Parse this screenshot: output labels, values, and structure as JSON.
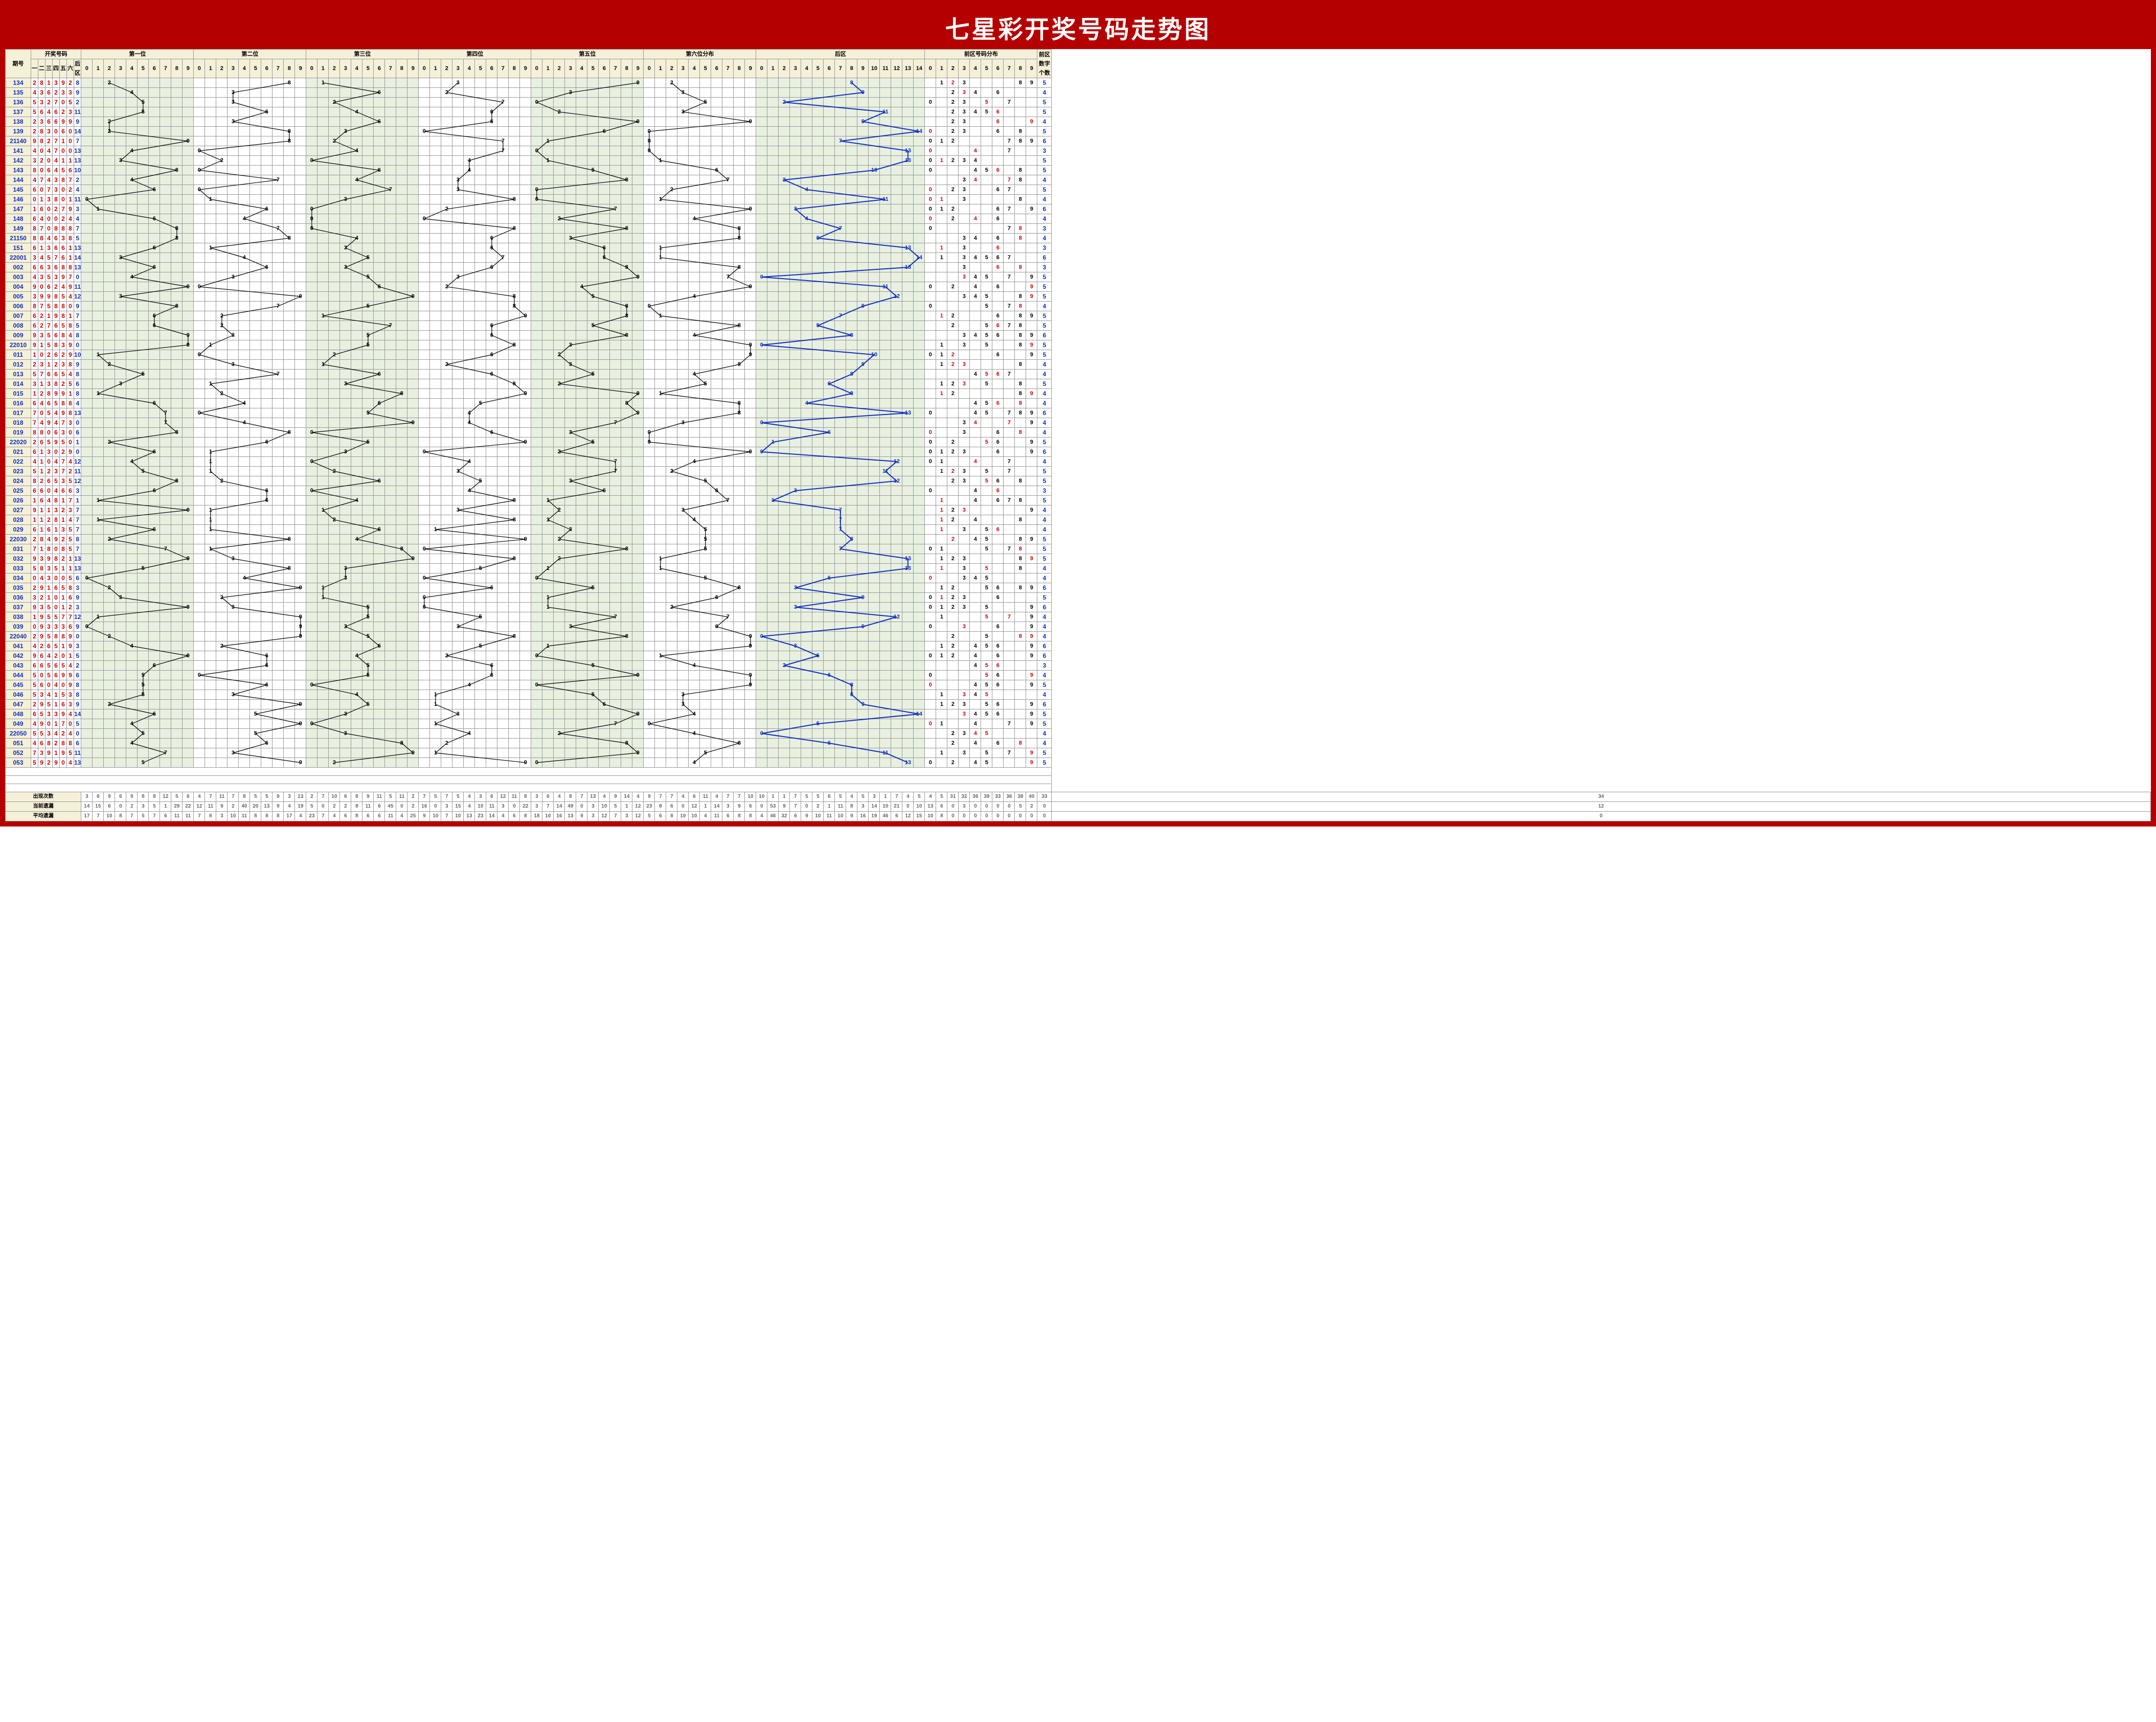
{
  "title": "七星彩开奖号码走势图",
  "headers": {
    "period": "期号",
    "draw_numbers": "开奖号码",
    "draw_cols": [
      "一",
      "二",
      "三",
      "四",
      "五",
      "六",
      "后区"
    ],
    "positions": [
      "第一位",
      "第二位",
      "第三位",
      "第四位",
      "第五位",
      "第六位分布",
      "后区"
    ],
    "pos_digits": [
      "0",
      "1",
      "2",
      "3",
      "4",
      "5",
      "6",
      "7",
      "8",
      "9"
    ],
    "hz_digits": [
      "0",
      "1",
      "2",
      "3",
      "4",
      "5",
      "6",
      "7",
      "8",
      "9",
      "10",
      "11",
      "12",
      "13",
      "14"
    ],
    "dist": "前区号码分布",
    "dist_digits": [
      "0",
      "1",
      "2",
      "3",
      "4",
      "5",
      "6",
      "7",
      "8",
      "9"
    ],
    "count": "前区数字个数"
  },
  "position_bg": [
    "green",
    "white",
    "green",
    "white",
    "green",
    "white",
    "green"
  ],
  "colors": {
    "frame": "#b50000",
    "header_bg": "#f5f0d8",
    "green_bg": "#e8f0e0",
    "grid": "#999999",
    "blue": "#1030c0",
    "red": "#cc0000",
    "black": "#000000",
    "trend_line_black": "#000000",
    "trend_line_blue": "#1030c0"
  },
  "footer": {
    "rows": [
      "出现次数",
      "当前遗漏",
      "平均遗漏"
    ],
    "values": [
      [
        3,
        6,
        9,
        6,
        9,
        8,
        8,
        12,
        5,
        6,
        4,
        7,
        11,
        7,
        8,
        5,
        5,
        9,
        3,
        13,
        2,
        7,
        10,
        6,
        8,
        9,
        11,
        5,
        11,
        2,
        7,
        5,
        7,
        5,
        4,
        3,
        6,
        12,
        11,
        8,
        3,
        6,
        4,
        8,
        7,
        13,
        4,
        9,
        14,
        4,
        9,
        7,
        7,
        4,
        6,
        11,
        4,
        7,
        7,
        10,
        10,
        1,
        1,
        7,
        5,
        5,
        6,
        5,
        4,
        5,
        3,
        1,
        7,
        4,
        5,
        4,
        5,
        31,
        32,
        36,
        39,
        33,
        36,
        38,
        40,
        33,
        34
      ],
      [
        14,
        15,
        6,
        0,
        2,
        3,
        5,
        1,
        29,
        22,
        12,
        11,
        9,
        2,
        40,
        20,
        13,
        9,
        4,
        19,
        5,
        0,
        2,
        2,
        8,
        11,
        6,
        45,
        0,
        2,
        16,
        0,
        3,
        15,
        4,
        10,
        11,
        3,
        0,
        22,
        3,
        7,
        14,
        49,
        0,
        3,
        10,
        5,
        1,
        12,
        23,
        8,
        6,
        0,
        12,
        1,
        14,
        3,
        9,
        6,
        0,
        53,
        9,
        7,
        0,
        2,
        1,
        11,
        8,
        3,
        14,
        10,
        21,
        0,
        10,
        13,
        6,
        0,
        3,
        0,
        0,
        0,
        0,
        5,
        2,
        0,
        12
      ],
      [
        17,
        7,
        10,
        8,
        7,
        5,
        7,
        6,
        11,
        11,
        7,
        8,
        3,
        10,
        11,
        8,
        8,
        8,
        17,
        4,
        23,
        7,
        4,
        6,
        8,
        6,
        6,
        11,
        4,
        25,
        9,
        10,
        7,
        10,
        13,
        23,
        14,
        4,
        6,
        8,
        18,
        10,
        16,
        13,
        9,
        3,
        12,
        7,
        3,
        12,
        5,
        6,
        8,
        10,
        10,
        4,
        11,
        6,
        8,
        8,
        4,
        46,
        32,
        6,
        9,
        10,
        11,
        10,
        9,
        16,
        19,
        46,
        6,
        12,
        15,
        10,
        8,
        0,
        0,
        0,
        0,
        0,
        0,
        0,
        0,
        0,
        0
      ]
    ]
  },
  "rows": [
    {
      "p": "134",
      "n": [
        2,
        8,
        1,
        3,
        9,
        2
      ],
      "hz": 8
    },
    {
      "p": "135",
      "n": [
        4,
        3,
        6,
        2,
        3,
        3
      ],
      "hz": 9
    },
    {
      "p": "136",
      "n": [
        5,
        3,
        2,
        7,
        0,
        5
      ],
      "hz": 2
    },
    {
      "p": "137",
      "n": [
        5,
        6,
        4,
        6,
        2,
        3
      ],
      "hz": 11
    },
    {
      "p": "138",
      "n": [
        2,
        3,
        6,
        6,
        9,
        9
      ],
      "hz": 9
    },
    {
      "p": "139",
      "n": [
        2,
        8,
        3,
        0,
        6,
        0
      ],
      "hz": 14
    },
    {
      "p": "21140",
      "n": [
        9,
        8,
        2,
        7,
        1,
        0
      ],
      "hz": 7
    },
    {
      "p": "141",
      "n": [
        4,
        0,
        4,
        7,
        0,
        0
      ],
      "hz": 13
    },
    {
      "p": "142",
      "n": [
        3,
        2,
        0,
        4,
        1,
        1
      ],
      "hz": 13
    },
    {
      "p": "143",
      "n": [
        8,
        0,
        6,
        4,
        5,
        6
      ],
      "hz": 10
    },
    {
      "p": "144",
      "n": [
        4,
        7,
        4,
        3,
        8,
        7
      ],
      "hz": 2
    },
    {
      "p": "145",
      "n": [
        6,
        0,
        7,
        3,
        0,
        2
      ],
      "hz": 4
    },
    {
      "p": "146",
      "n": [
        0,
        1,
        3,
        8,
        0,
        1
      ],
      "hz": 11
    },
    {
      "p": "147",
      "n": [
        1,
        6,
        0,
        2,
        7,
        9
      ],
      "hz": 3
    },
    {
      "p": "148",
      "n": [
        6,
        4,
        0,
        0,
        2,
        4
      ],
      "hz": 4
    },
    {
      "p": "149",
      "n": [
        8,
        7,
        0,
        8,
        8,
        8
      ],
      "hz": 7
    },
    {
      "p": "21150",
      "n": [
        8,
        8,
        4,
        6,
        3,
        8
      ],
      "hz": 5
    },
    {
      "p": "151",
      "n": [
        6,
        1,
        3,
        6,
        6,
        1
      ],
      "hz": 13
    },
    {
      "p": "22001",
      "n": [
        3,
        4,
        5,
        7,
        6,
        1
      ],
      "hz": 14
    },
    {
      "p": "002",
      "n": [
        6,
        6,
        3,
        6,
        8,
        8
      ],
      "hz": 13
    },
    {
      "p": "003",
      "n": [
        4,
        3,
        5,
        3,
        9,
        7
      ],
      "hz": 0
    },
    {
      "p": "004",
      "n": [
        9,
        0,
        6,
        2,
        4,
        9
      ],
      "hz": 11
    },
    {
      "p": "005",
      "n": [
        3,
        9,
        9,
        8,
        5,
        4
      ],
      "hz": 12
    },
    {
      "p": "006",
      "n": [
        8,
        7,
        5,
        8,
        8,
        0
      ],
      "hz": 9
    },
    {
      "p": "007",
      "n": [
        6,
        2,
        1,
        9,
        8,
        1
      ],
      "hz": 7
    },
    {
      "p": "008",
      "n": [
        6,
        2,
        7,
        6,
        5,
        8
      ],
      "hz": 5
    },
    {
      "p": "009",
      "n": [
        9,
        3,
        5,
        6,
        8,
        4
      ],
      "hz": 8
    },
    {
      "p": "22010",
      "n": [
        9,
        1,
        5,
        8,
        3,
        9
      ],
      "hz": 0
    },
    {
      "p": "011",
      "n": [
        1,
        0,
        2,
        6,
        2,
        9
      ],
      "hz": 10
    },
    {
      "p": "012",
      "n": [
        2,
        3,
        1,
        2,
        3,
        8
      ],
      "hz": 9
    },
    {
      "p": "013",
      "n": [
        5,
        7,
        6,
        6,
        5,
        4
      ],
      "hz": 8
    },
    {
      "p": "014",
      "n": [
        3,
        1,
        3,
        8,
        2,
        5
      ],
      "hz": 6
    },
    {
      "p": "015",
      "n": [
        1,
        2,
        8,
        9,
        9,
        1
      ],
      "hz": 8
    },
    {
      "p": "016",
      "n": [
        6,
        4,
        6,
        5,
        8,
        8
      ],
      "hz": 4
    },
    {
      "p": "017",
      "n": [
        7,
        0,
        5,
        4,
        9,
        8
      ],
      "hz": 13
    },
    {
      "p": "018",
      "n": [
        7,
        4,
        9,
        4,
        7,
        3
      ],
      "hz": 0
    },
    {
      "p": "019",
      "n": [
        8,
        8,
        0,
        6,
        3,
        0
      ],
      "hz": 6
    },
    {
      "p": "22020",
      "n": [
        2,
        6,
        5,
        9,
        5,
        0
      ],
      "hz": 1
    },
    {
      "p": "021",
      "n": [
        6,
        1,
        3,
        0,
        2,
        9
      ],
      "hz": 0
    },
    {
      "p": "022",
      "n": [
        4,
        1,
        0,
        4,
        7,
        4
      ],
      "hz": 12
    },
    {
      "p": "023",
      "n": [
        5,
        1,
        2,
        3,
        7,
        2
      ],
      "hz": 11
    },
    {
      "p": "024",
      "n": [
        8,
        2,
        6,
        5,
        3,
        5
      ],
      "hz": 12
    },
    {
      "p": "025",
      "n": [
        6,
        6,
        0,
        4,
        6,
        6
      ],
      "hz": 3
    },
    {
      "p": "026",
      "n": [
        1,
        6,
        4,
        8,
        1,
        7
      ],
      "hz": 1
    },
    {
      "p": "027",
      "n": [
        9,
        1,
        1,
        3,
        2,
        3
      ],
      "hz": 7
    },
    {
      "p": "028",
      "n": [
        1,
        1,
        2,
        8,
        1,
        4
      ],
      "hz": 7
    },
    {
      "p": "029",
      "n": [
        6,
        1,
        6,
        1,
        3,
        5
      ],
      "hz": 7
    },
    {
      "p": "22030",
      "n": [
        2,
        8,
        4,
        9,
        2,
        5
      ],
      "hz": 8
    },
    {
      "p": "031",
      "n": [
        7,
        1,
        8,
        0,
        8,
        5
      ],
      "hz": 7
    },
    {
      "p": "032",
      "n": [
        9,
        3,
        9,
        8,
        2,
        1
      ],
      "hz": 13
    },
    {
      "p": "033",
      "n": [
        5,
        8,
        3,
        5,
        1,
        1
      ],
      "hz": 13
    },
    {
      "p": "034",
      "n": [
        0,
        4,
        3,
        0,
        0,
        5
      ],
      "hz": 6
    },
    {
      "p": "035",
      "n": [
        2,
        9,
        1,
        6,
        5,
        8
      ],
      "hz": 3
    },
    {
      "p": "036",
      "n": [
        3,
        2,
        1,
        0,
        1,
        6
      ],
      "hz": 9
    },
    {
      "p": "037",
      "n": [
        9,
        3,
        5,
        0,
        1,
        2
      ],
      "hz": 3
    },
    {
      "p": "038",
      "n": [
        1,
        9,
        5,
        5,
        7,
        7
      ],
      "hz": 12
    },
    {
      "p": "039",
      "n": [
        0,
        9,
        3,
        3,
        3,
        6
      ],
      "hz": 9
    },
    {
      "p": "22040",
      "n": [
        2,
        9,
        5,
        8,
        8,
        9
      ],
      "hz": 0
    },
    {
      "p": "041",
      "n": [
        4,
        2,
        6,
        5,
        1,
        9
      ],
      "hz": 3
    },
    {
      "p": "042",
      "n": [
        9,
        6,
        4,
        2,
        0,
        1
      ],
      "hz": 5
    },
    {
      "p": "043",
      "n": [
        6,
        6,
        5,
        6,
        5,
        4
      ],
      "hz": 2
    },
    {
      "p": "044",
      "n": [
        5,
        0,
        5,
        6,
        9,
        9
      ],
      "hz": 6
    },
    {
      "p": "045",
      "n": [
        5,
        6,
        0,
        4,
        0,
        9
      ],
      "hz": 8
    },
    {
      "p": "046",
      "n": [
        5,
        3,
        4,
        1,
        5,
        3
      ],
      "hz": 8
    },
    {
      "p": "047",
      "n": [
        2,
        9,
        5,
        1,
        6,
        3
      ],
      "hz": 9
    },
    {
      "p": "048",
      "n": [
        6,
        5,
        3,
        3,
        9,
        4
      ],
      "hz": 14
    },
    {
      "p": "049",
      "n": [
        4,
        9,
        0,
        1,
        7,
        0
      ],
      "hz": 5
    },
    {
      "p": "22050",
      "n": [
        5,
        5,
        3,
        4,
        2,
        4
      ],
      "hz": 0
    },
    {
      "p": "051",
      "n": [
        4,
        6,
        8,
        2,
        8,
        8
      ],
      "hz": 6
    },
    {
      "p": "052",
      "n": [
        7,
        3,
        9,
        1,
        9,
        5
      ],
      "hz": 11
    },
    {
      "p": "053",
      "n": [
        5,
        9,
        2,
        9,
        0,
        4
      ],
      "hz": 13
    }
  ]
}
